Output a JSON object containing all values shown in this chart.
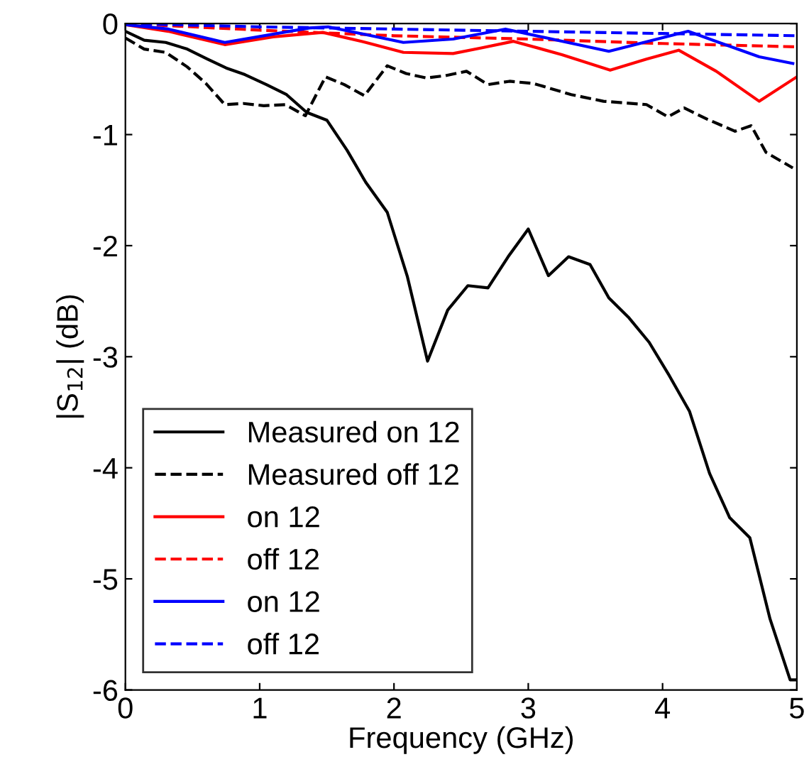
{
  "chart_data": {
    "type": "line",
    "xlabel": "Frequency (GHz)",
    "ylabel": "|S$_{12}$| (dB)",
    "xlim": [
      0,
      5
    ],
    "ylim": [
      -6,
      0
    ],
    "xticks": [
      0,
      1,
      2,
      3,
      4,
      5
    ],
    "yticks": [
      -6,
      -5,
      -4,
      -3,
      -2,
      -1,
      0
    ],
    "grid": false,
    "legend": "bottom left",
    "series": [
      {
        "name": "Measured on 12",
        "color": "#000000",
        "line_style": "solid",
        "x": [
          0,
          0.14,
          0.3,
          0.46,
          0.61,
          0.75,
          0.89,
          1.05,
          1.2,
          1.35,
          1.5,
          1.65,
          1.79,
          1.95,
          2.1,
          2.25,
          2.4,
          2.55,
          2.7,
          2.85,
          3.0,
          3.15,
          3.3,
          3.46,
          3.6,
          3.75,
          3.9,
          4.05,
          4.2,
          4.35,
          4.5,
          4.65,
          4.8,
          4.95,
          5.0
        ],
        "values": [
          -0.07,
          -0.15,
          -0.17,
          -0.23,
          -0.32,
          -0.4,
          -0.46,
          -0.55,
          -0.64,
          -0.8,
          -0.87,
          -1.14,
          -1.43,
          -1.7,
          -2.28,
          -3.04,
          -2.58,
          -2.36,
          -2.38,
          -2.1,
          -1.85,
          -2.27,
          -2.1,
          -2.17,
          -2.47,
          -2.65,
          -2.87,
          -3.17,
          -3.49,
          -4.05,
          -4.45,
          -4.63,
          -5.36,
          -5.91,
          -5.91
        ]
      },
      {
        "name": "Measured off 12",
        "color": "#000000",
        "line_style": "dashed",
        "x": [
          0,
          0.14,
          0.3,
          0.46,
          0.6,
          0.74,
          0.88,
          1.03,
          1.19,
          1.34,
          1.49,
          1.63,
          1.78,
          1.95,
          2.09,
          2.24,
          2.38,
          2.54,
          2.7,
          2.86,
          3.04,
          3.32,
          3.56,
          3.88,
          4.04,
          4.16,
          4.33,
          4.54,
          4.66,
          4.77,
          4.97
        ],
        "values": [
          -0.13,
          -0.23,
          -0.26,
          -0.39,
          -0.54,
          -0.73,
          -0.72,
          -0.74,
          -0.73,
          -0.83,
          -0.48,
          -0.55,
          -0.65,
          -0.38,
          -0.45,
          -0.49,
          -0.47,
          -0.43,
          -0.55,
          -0.52,
          -0.54,
          -0.64,
          -0.7,
          -0.73,
          -0.84,
          -0.76,
          -0.86,
          -0.97,
          -0.92,
          -1.16,
          -1.3
        ]
      },
      {
        "name": "on 12",
        "color": "#ff0000",
        "line_style": "solid",
        "x": [
          0,
          0.32,
          0.74,
          1.1,
          1.47,
          1.79,
          2.07,
          2.44,
          2.65,
          2.89,
          3.25,
          3.61,
          3.88,
          4.12,
          4.4,
          4.72,
          5.0
        ],
        "values": [
          -0.01,
          -0.07,
          -0.19,
          -0.12,
          -0.08,
          -0.17,
          -0.26,
          -0.27,
          -0.22,
          -0.16,
          -0.28,
          -0.42,
          -0.32,
          -0.24,
          -0.43,
          -0.7,
          -0.48
        ]
      },
      {
        "name": "off 12",
        "color": "#ff0000",
        "line_style": "dashed",
        "x": [
          0,
          1,
          2,
          3,
          4,
          5
        ],
        "values": [
          0,
          -0.06,
          -0.11,
          -0.14,
          -0.18,
          -0.21
        ]
      },
      {
        "name": "on 12",
        "color": "#0000ff",
        "line_style": "solid",
        "x": [
          0,
          0.32,
          0.74,
          1.37,
          1.51,
          2.07,
          2.44,
          2.83,
          3.6,
          4.19,
          4.72,
          4.97
        ],
        "values": [
          -0.01,
          -0.05,
          -0.17,
          -0.04,
          -0.03,
          -0.17,
          -0.14,
          -0.05,
          -0.25,
          -0.07,
          -0.3,
          -0.36
        ]
      },
      {
        "name": "off 12",
        "color": "#0000ff",
        "line_style": "dashed",
        "x": [
          0,
          1,
          2,
          3,
          4,
          5
        ],
        "values": [
          0,
          -0.03,
          -0.05,
          -0.07,
          -0.09,
          -0.11
        ]
      }
    ]
  }
}
